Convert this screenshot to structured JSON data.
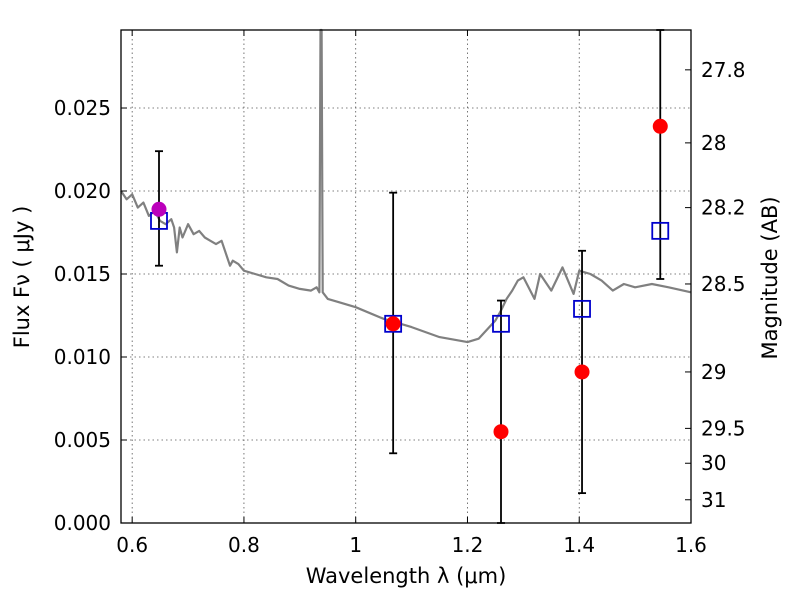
{
  "chart_data": {
    "type": "scatter",
    "xlabel": "Wavelength  λ (μm)",
    "ylabel": "Flux  Fν  ( μJy )",
    "y2label": "Magnitude (AB)",
    "xlim": [
      0.58,
      1.6
    ],
    "ylim": [
      0.0,
      0.0297
    ],
    "grid": true,
    "x_ticks": [
      {
        "value": 0.6,
        "label": "0.6"
      },
      {
        "value": 0.8,
        "label": "0.8"
      },
      {
        "value": 1.0,
        "label": "1"
      },
      {
        "value": 1.2,
        "label": "1.2"
      },
      {
        "value": 1.4,
        "label": "1.4"
      },
      {
        "value": 1.6,
        "label": "1.6"
      }
    ],
    "y_ticks": [
      {
        "value": 0.0,
        "label": "0.000"
      },
      {
        "value": 0.005,
        "label": "0.005"
      },
      {
        "value": 0.01,
        "label": "0.010"
      },
      {
        "value": 0.015,
        "label": "0.015"
      },
      {
        "value": 0.02,
        "label": "0.020"
      },
      {
        "value": 0.025,
        "label": "0.025"
      }
    ],
    "y2_ticks": [
      {
        "flux": 0.0273,
        "label": "27.8"
      },
      {
        "flux": 0.0229,
        "label": "28"
      },
      {
        "flux": 0.019,
        "label": "28.2"
      },
      {
        "flux": 0.0144,
        "label": "28.5"
      },
      {
        "flux": 0.0091,
        "label": "29"
      },
      {
        "flux": 0.0057,
        "label": "29.5"
      },
      {
        "flux": 0.0036,
        "label": "30"
      },
      {
        "flux": 0.0014,
        "label": "31"
      }
    ],
    "series": [
      {
        "kind": "line",
        "color": "#808080",
        "x": [
          0.58,
          0.59,
          0.6,
          0.61,
          0.62,
          0.63,
          0.64,
          0.65,
          0.66,
          0.67,
          0.675,
          0.68,
          0.685,
          0.69,
          0.7,
          0.71,
          0.72,
          0.73,
          0.74,
          0.75,
          0.76,
          0.77,
          0.775,
          0.78,
          0.79,
          0.8,
          0.82,
          0.84,
          0.86,
          0.88,
          0.9,
          0.92,
          0.93,
          0.935,
          0.937,
          0.939,
          0.941,
          0.95,
          0.97,
          1.0,
          1.05,
          1.1,
          1.15,
          1.2,
          1.22,
          1.25,
          1.26,
          1.27,
          1.28,
          1.29,
          1.3,
          1.32,
          1.33,
          1.35,
          1.37,
          1.39,
          1.4,
          1.42,
          1.44,
          1.46,
          1.48,
          1.5,
          1.53,
          1.56,
          1.6
        ],
        "y": [
          0.02,
          0.0195,
          0.0198,
          0.019,
          0.0193,
          0.0185,
          0.0188,
          0.0182,
          0.018,
          0.0183,
          0.0178,
          0.0163,
          0.0178,
          0.0172,
          0.018,
          0.0174,
          0.0176,
          0.0172,
          0.017,
          0.0168,
          0.017,
          0.016,
          0.0155,
          0.0158,
          0.0156,
          0.0152,
          0.015,
          0.0148,
          0.0147,
          0.0143,
          0.0141,
          0.014,
          0.0142,
          0.0139,
          0.0297,
          0.0297,
          0.0139,
          0.0135,
          0.0133,
          0.013,
          0.0123,
          0.0118,
          0.0112,
          0.0109,
          0.0111,
          0.0122,
          0.0128,
          0.0135,
          0.014,
          0.0146,
          0.0148,
          0.0135,
          0.015,
          0.014,
          0.0154,
          0.0138,
          0.0152,
          0.015,
          0.0146,
          0.014,
          0.0144,
          0.0142,
          0.0144,
          0.0142,
          0.0139
        ]
      },
      {
        "kind": "errorbar",
        "color": "#000000",
        "points": [
          {
            "x": 0.648,
            "low": 0.0155,
            "high": 0.0224
          },
          {
            "x": 1.067,
            "low": 0.0042,
            "high": 0.0199
          },
          {
            "x": 1.26,
            "low": 0.0,
            "high": 0.0134
          },
          {
            "x": 1.405,
            "low": 0.0018,
            "high": 0.0164
          },
          {
            "x": 1.545,
            "low": 0.0147,
            "high": 0.0297
          }
        ]
      },
      {
        "kind": "open-square",
        "color": "#0000cc",
        "points": [
          {
            "x": 0.648,
            "y": 0.0182
          },
          {
            "x": 1.067,
            "y": 0.012
          },
          {
            "x": 1.26,
            "y": 0.012
          },
          {
            "x": 1.405,
            "y": 0.0129
          },
          {
            "x": 1.545,
            "y": 0.0176
          }
        ]
      },
      {
        "kind": "filled-circle",
        "color": "#ff0000",
        "points": [
          {
            "x": 1.067,
            "y": 0.012
          },
          {
            "x": 1.26,
            "y": 0.0055
          },
          {
            "x": 1.405,
            "y": 0.0091
          },
          {
            "x": 1.545,
            "y": 0.0239
          }
        ]
      },
      {
        "kind": "filled-circle",
        "color": "#bb00bb",
        "points": [
          {
            "x": 0.648,
            "y": 0.0189
          }
        ]
      }
    ]
  }
}
